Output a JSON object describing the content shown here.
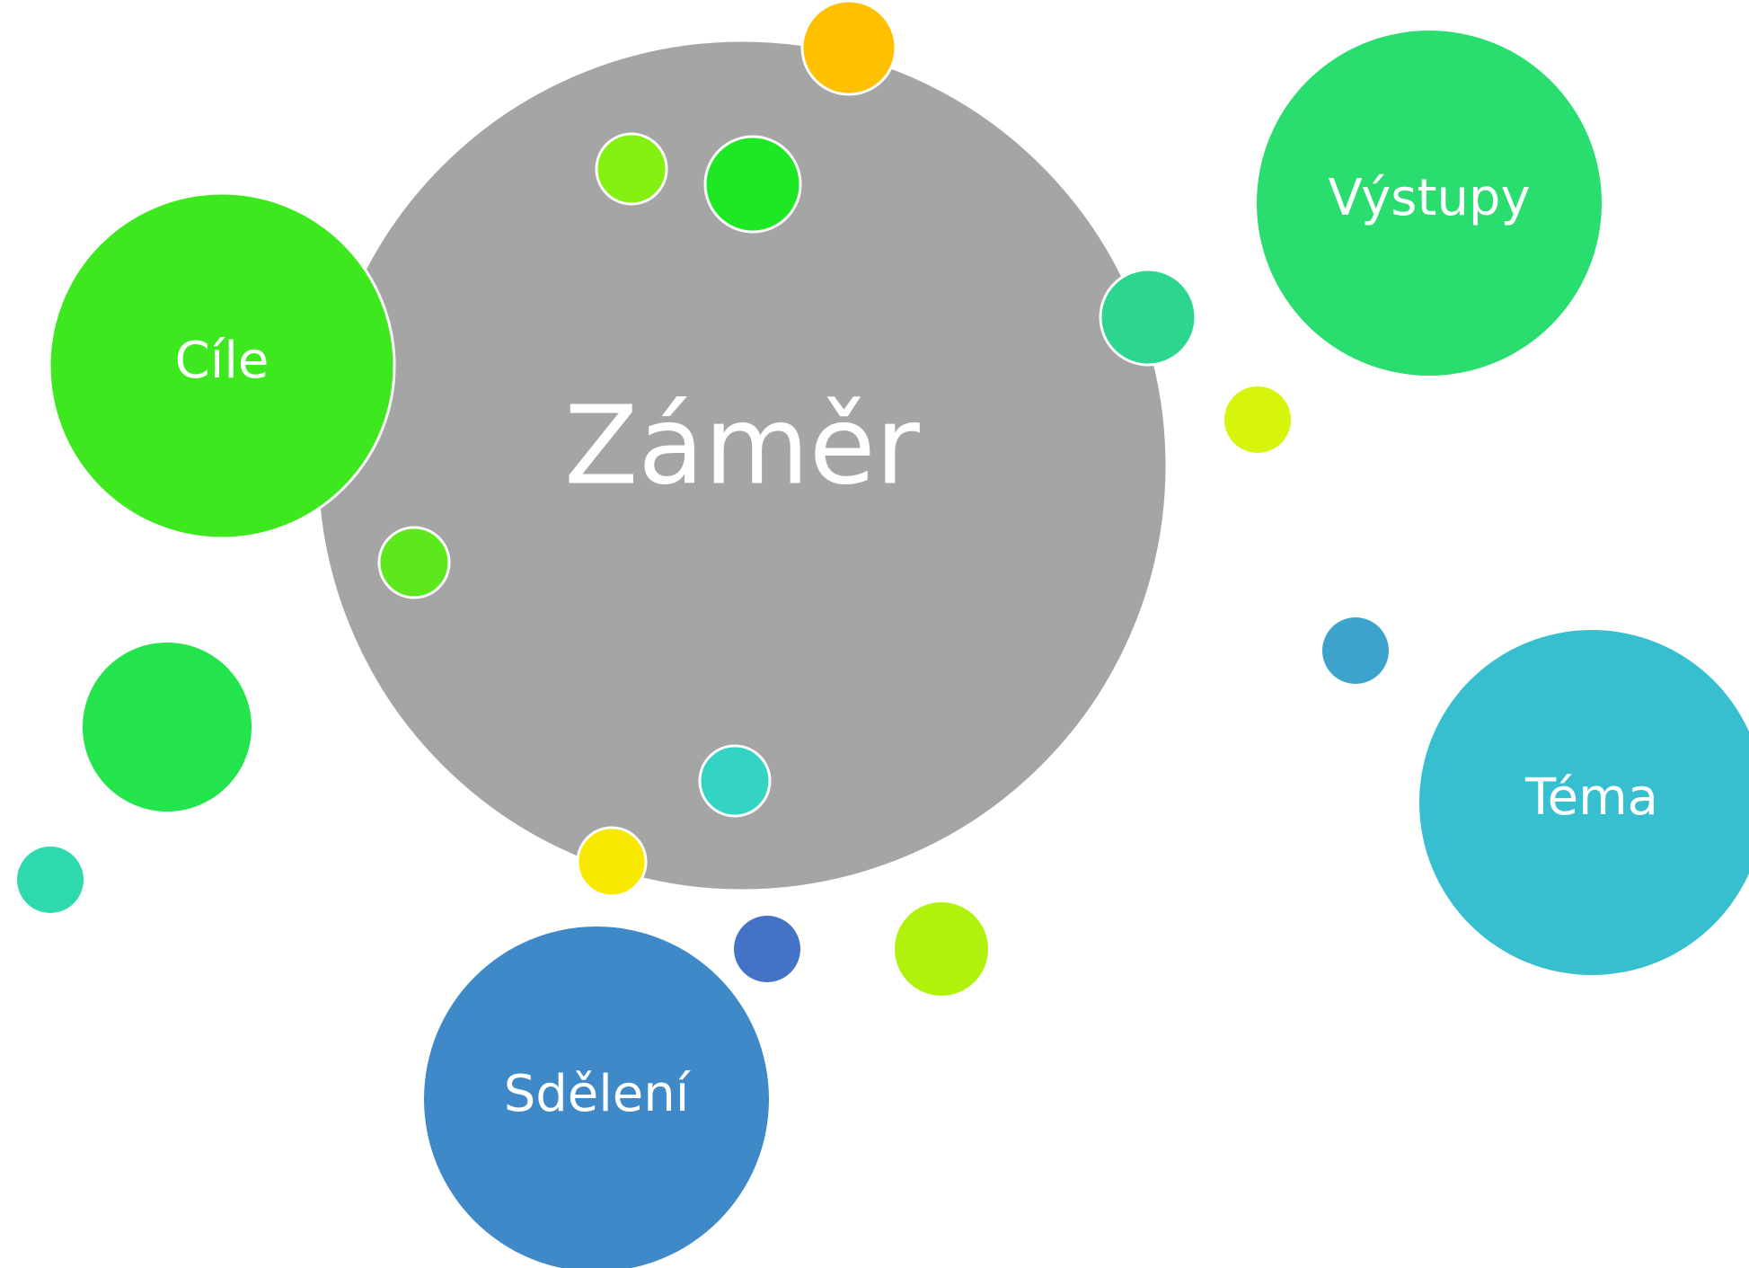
{
  "nodes": [
    {
      "label": "Záměr"
    },
    {
      "label": "Cíle"
    },
    {
      "label": "Výstupy"
    },
    {
      "label": "Téma"
    },
    {
      "label": "Sdělení"
    }
  ]
}
